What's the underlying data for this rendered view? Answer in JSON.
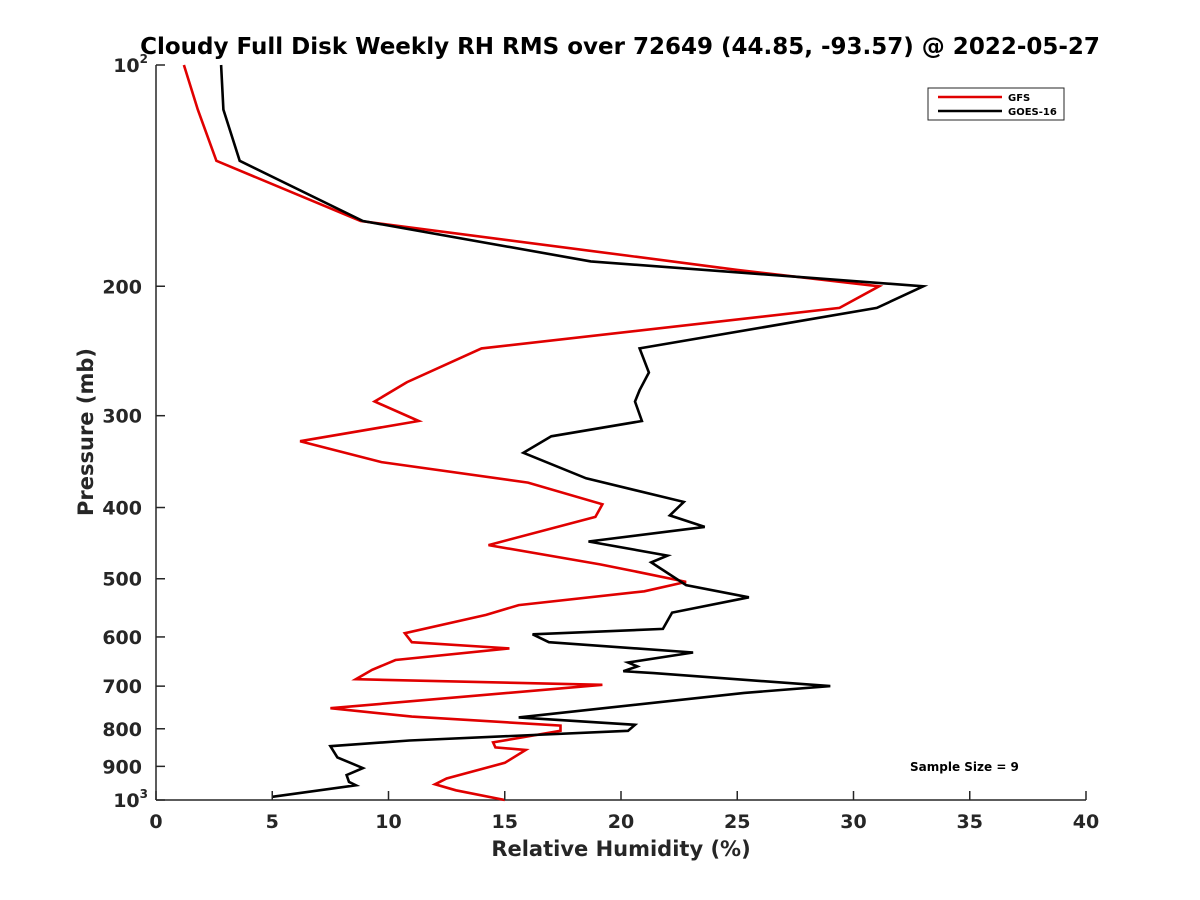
{
  "chart_data": {
    "type": "line",
    "title": "Cloudy Full Disk Weekly RH RMS over 72649 (44.85, -93.57) @ 2022-05-27",
    "xlabel": "Relative Humidity (%)",
    "ylabel": "Pressure (mb)",
    "xlim": [
      0,
      40
    ],
    "ylim": [
      100,
      1000
    ],
    "y_scale": "log",
    "y_reversed": true,
    "grid": false,
    "legend_position": "top-right",
    "x_ticks": [
      "0",
      "5",
      "10",
      "15",
      "20",
      "25",
      "30",
      "35",
      "40"
    ],
    "y_ticks": [
      {
        "value": 100,
        "base": "10",
        "exp": "2"
      },
      {
        "value": 200,
        "base": "200",
        "exp": ""
      },
      {
        "value": 300,
        "base": "300",
        "exp": ""
      },
      {
        "value": 400,
        "base": "400",
        "exp": ""
      },
      {
        "value": 500,
        "base": "500",
        "exp": ""
      },
      {
        "value": 600,
        "base": "600",
        "exp": ""
      },
      {
        "value": 700,
        "base": "700",
        "exp": ""
      },
      {
        "value": 800,
        "base": "800",
        "exp": ""
      },
      {
        "value": 900,
        "base": "900",
        "exp": ""
      },
      {
        "value": 1000,
        "base": "10",
        "exp": "3"
      }
    ],
    "annotation": "Sample Size = 9",
    "series": [
      {
        "name": "GFS",
        "color": "#e00000",
        "points": [
          [
            1.2,
            100
          ],
          [
            1.8,
            115
          ],
          [
            2.6,
            135
          ],
          [
            8.8,
            163
          ],
          [
            25.0,
            190
          ],
          [
            31.1,
            200
          ],
          [
            29.4,
            214
          ],
          [
            14.0,
            243
          ],
          [
            10.8,
            270
          ],
          [
            9.4,
            287
          ],
          [
            11.3,
            305
          ],
          [
            6.2,
            325
          ],
          [
            9.7,
            347
          ],
          [
            16.0,
            370
          ],
          [
            19.2,
            396
          ],
          [
            18.9,
            412
          ],
          [
            14.3,
            450
          ],
          [
            19.1,
            478
          ],
          [
            20.8,
            490
          ],
          [
            22.8,
            505
          ],
          [
            21.0,
            520
          ],
          [
            15.6,
            543
          ],
          [
            14.2,
            560
          ],
          [
            10.7,
            593
          ],
          [
            11.0,
            610
          ],
          [
            15.2,
            622
          ],
          [
            10.3,
            645
          ],
          [
            9.3,
            665
          ],
          [
            8.6,
            685
          ],
          [
            19.2,
            697
          ],
          [
            7.5,
            750
          ],
          [
            11.0,
            770
          ],
          [
            17.4,
            792
          ],
          [
            17.4,
            805
          ],
          [
            14.5,
            835
          ],
          [
            14.6,
            848
          ],
          [
            15.9,
            855
          ],
          [
            15.0,
            890
          ],
          [
            12.5,
            935
          ],
          [
            12.0,
            952
          ],
          [
            12.9,
            970
          ],
          [
            15.0,
            1000
          ]
        ]
      },
      {
        "name": "GOES-16",
        "color": "#000000",
        "points": [
          [
            2.8,
            100
          ],
          [
            2.9,
            115
          ],
          [
            3.6,
            135
          ],
          [
            8.9,
            163
          ],
          [
            18.7,
            185
          ],
          [
            33.0,
            200
          ],
          [
            31.0,
            214
          ],
          [
            20.8,
            243
          ],
          [
            21.2,
            262
          ],
          [
            20.8,
            277
          ],
          [
            20.6,
            287
          ],
          [
            20.9,
            305
          ],
          [
            17.0,
            320
          ],
          [
            15.8,
            337
          ],
          [
            18.5,
            365
          ],
          [
            22.7,
            393
          ],
          [
            22.1,
            410
          ],
          [
            23.6,
            425
          ],
          [
            18.6,
            445
          ],
          [
            22.0,
            465
          ],
          [
            21.3,
            475
          ],
          [
            22.8,
            510
          ],
          [
            25.5,
            530
          ],
          [
            22.2,
            556
          ],
          [
            21.8,
            585
          ],
          [
            16.2,
            595
          ],
          [
            16.9,
            610
          ],
          [
            23.1,
            630
          ],
          [
            20.3,
            650
          ],
          [
            20.7,
            658
          ],
          [
            20.1,
            668
          ],
          [
            21.4,
            672
          ],
          [
            29.0,
            700
          ],
          [
            25.3,
            715
          ],
          [
            15.6,
            772
          ],
          [
            20.6,
            790
          ],
          [
            20.3,
            805
          ],
          [
            10.9,
            830
          ],
          [
            7.5,
            845
          ],
          [
            7.8,
            875
          ],
          [
            8.9,
            905
          ],
          [
            8.2,
            925
          ],
          [
            8.3,
            945
          ],
          [
            8.6,
            955
          ],
          [
            5.0,
            990
          ]
        ]
      }
    ]
  }
}
